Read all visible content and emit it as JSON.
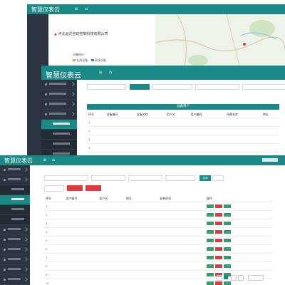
{
  "app": {
    "title": "智慧仪表云"
  },
  "win1": {
    "company": "河北运达自动控制科技有限公司",
    "map_legend": [
      "设备统计",
      "在线设备",
      "离线设备"
    ]
  },
  "win2": {
    "breadcrumb": "",
    "section_title": "设备用户",
    "filter_label": "",
    "search_label": "",
    "columns": [
      "序号",
      "设备编码",
      "设备名称",
      "用户名",
      "用户编码",
      "",
      "所属仓库",
      "",
      "地址"
    ],
    "rows": [
      [
        "1",
        "",
        "",
        "",
        "",
        "",
        "",
        "",
        ""
      ],
      [
        "2",
        "",
        "",
        "",
        "",
        "",
        "",
        "",
        ""
      ],
      [
        "3",
        "",
        "",
        "",
        "",
        "",
        "",
        "",
        ""
      ],
      [
        "4",
        "",
        "",
        "",
        "",
        "",
        "",
        "",
        ""
      ],
      [
        "5",
        "",
        "",
        "",
        "",
        "",
        "",
        "",
        ""
      ]
    ],
    "menu": [
      "",
      "",
      "",
      "",
      "",
      "",
      "",
      "",
      ""
    ]
  },
  "win3": {
    "breadcrumb": "",
    "filter_placeholder": "",
    "query_label": "查询",
    "reset_label": "",
    "add_label": "",
    "export_label": "",
    "columns": [
      "序号",
      "用户编号",
      "用户名",
      "地址",
      "",
      "",
      "安装时间",
      "",
      "",
      "操作"
    ],
    "rows": [
      {
        "no": "1",
        "vals": [
          "",
          "",
          "",
          "",
          "",
          "",
          "",
          ""
        ]
      },
      {
        "no": "2",
        "vals": [
          "",
          "",
          "",
          "",
          "",
          "",
          "",
          ""
        ]
      },
      {
        "no": "3",
        "vals": [
          "",
          "",
          "",
          "",
          "",
          "",
          "",
          ""
        ]
      },
      {
        "no": "4",
        "vals": [
          "",
          "",
          "",
          "",
          "",
          "",
          "",
          ""
        ]
      },
      {
        "no": "5",
        "vals": [
          "",
          "",
          "",
          "",
          "",
          "",
          "",
          ""
        ]
      },
      {
        "no": "6",
        "vals": [
          "",
          "",
          "",
          "",
          "",
          "",
          "",
          ""
        ]
      },
      {
        "no": "7",
        "vals": [
          "",
          "",
          "",
          "",
          "",
          "",
          "",
          ""
        ]
      },
      {
        "no": "8",
        "vals": [
          "",
          "",
          "",
          "",
          "",
          "",
          "",
          ""
        ]
      },
      {
        "no": "9",
        "vals": [
          "",
          "",
          "",
          "",
          "",
          "",
          "",
          ""
        ]
      },
      {
        "no": "10",
        "vals": [
          "",
          "",
          "",
          "",
          "",
          "",
          "",
          ""
        ]
      }
    ],
    "pagination": ""
  },
  "colors": {
    "header": "#1b8a86",
    "sidebar": "#2b3440",
    "active": "#1b8a86",
    "edit": "#2aa36b",
    "delete": "#e4393c"
  }
}
